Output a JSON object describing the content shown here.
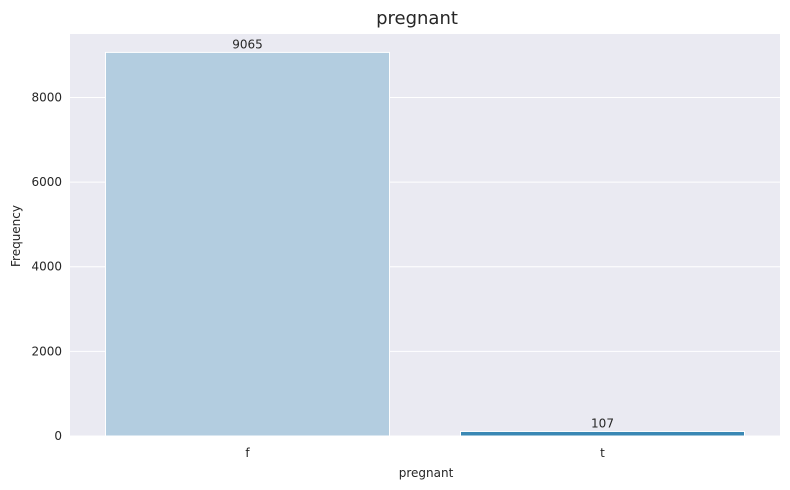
{
  "chart_data": {
    "type": "bar",
    "title": "pregnant",
    "xlabel": "pregnant",
    "ylabel": "Frequency",
    "categories": [
      "f",
      "t"
    ],
    "values": [
      9065,
      107
    ],
    "data_labels": [
      "9065",
      "107"
    ],
    "bar_colors": [
      "#b3cde0",
      "#3a88b4"
    ],
    "ylim": [
      0,
      9500
    ],
    "yticks": [
      0,
      2000,
      4000,
      6000,
      8000
    ],
    "ytick_labels": [
      "0",
      "2000",
      "4000",
      "6000",
      "8000"
    ],
    "grid": true,
    "plot_background": "#eaeaf2"
  }
}
